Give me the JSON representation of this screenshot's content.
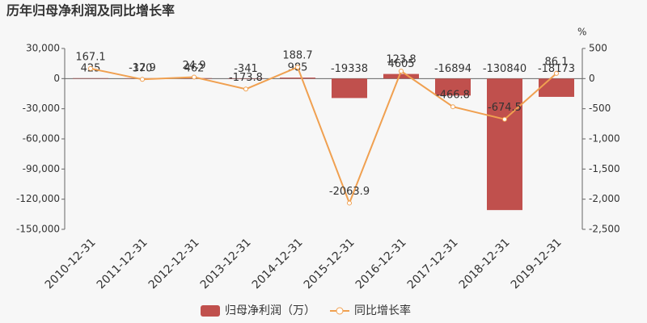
{
  "chart_data": {
    "type": "bar-line",
    "title": "历年归母净利润及同比增长率",
    "y2_unit": "%",
    "categories": [
      "2010-12-31",
      "2011-12-31",
      "2012-12-31",
      "2013-12-31",
      "2014-12-31",
      "2015-12-31",
      "2016-12-31",
      "2017-12-31",
      "2018-12-31",
      "2019-12-31"
    ],
    "series": [
      {
        "name": "归母净利润（万）",
        "type": "bar",
        "color": "#c0504d",
        "label_color": "#b3413e",
        "values": [
          425,
          370,
          462,
          -341,
          985,
          -19338,
          4605,
          -16894,
          -130840,
          -18173
        ]
      },
      {
        "name": "同比增长率",
        "type": "line",
        "axis": "y2",
        "color": "#f0a050",
        "values": [
          167.1,
          -12.9,
          24.9,
          -173.8,
          188.7,
          -2063.9,
          123.8,
          -466.8,
          -674.5,
          86.1
        ]
      }
    ],
    "ylim": [
      -150000,
      30000
    ],
    "yticks": [
      {
        "value": 30000,
        "label": "30,000"
      },
      0,
      {
        "value": -30000,
        "label": "-30,000"
      },
      {
        "value": -60000,
        "label": "-60,000"
      },
      {
        "value": -90000,
        "label": "-90,000"
      },
      {
        "value": -120000,
        "label": "-120,000"
      },
      {
        "value": -150000,
        "label": "-150,000"
      }
    ],
    "y2lim": [
      -2500,
      500
    ],
    "y2ticks": [
      500,
      0,
      -500,
      {
        "value": -1000,
        "label": "-1,000"
      },
      {
        "value": -1500,
        "label": "-1,500"
      },
      {
        "value": -2000,
        "label": "-2,000"
      },
      {
        "value": -2500,
        "label": "-2,500"
      }
    ],
    "grid": false
  }
}
